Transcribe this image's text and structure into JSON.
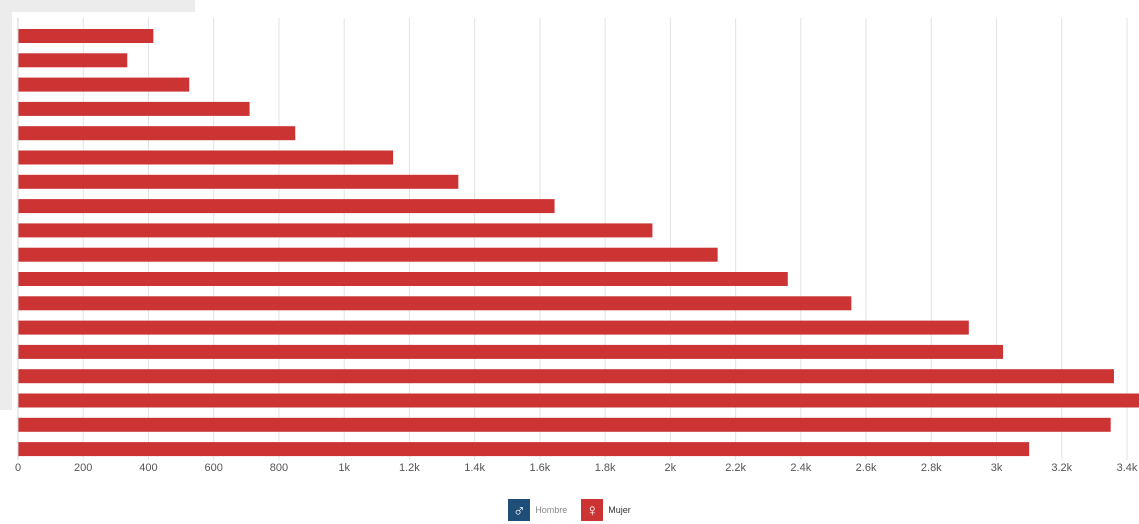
{
  "chart_data": {
    "type": "bar",
    "orientation": "horizontal",
    "xlim": [
      0,
      3400
    ],
    "x_ticks": [
      0,
      200,
      400,
      600,
      800,
      1000,
      1200,
      1400,
      1600,
      1800,
      2000,
      2200,
      2400,
      2600,
      2800,
      3000,
      3200,
      3400
    ],
    "x_tick_labels": [
      "0",
      "200",
      "400",
      "600",
      "800",
      "1k",
      "1.2k",
      "1.4k",
      "1.6k",
      "1.8k",
      "2k",
      "2.2k",
      "2.4k",
      "2.6k",
      "2.8k",
      "3k",
      "3.2k",
      "3.4k"
    ],
    "grid": "vertical",
    "series": [
      {
        "name": "Mujer",
        "color": "#cc3333",
        "values": [
          415,
          335,
          525,
          710,
          850,
          1150,
          1350,
          1645,
          1945,
          2145,
          2360,
          2555,
          2915,
          3020,
          3360,
          3445,
          3350,
          3100
        ]
      }
    ],
    "legend": {
      "position": "bottom-center",
      "items": [
        {
          "label": "Hombre",
          "color": "#1f4e79",
          "icon": "male-symbol-icon",
          "symbol": "♂"
        },
        {
          "label": "Mujer",
          "color": "#cc3333",
          "icon": "female-symbol-icon",
          "symbol": "♀"
        }
      ]
    }
  }
}
